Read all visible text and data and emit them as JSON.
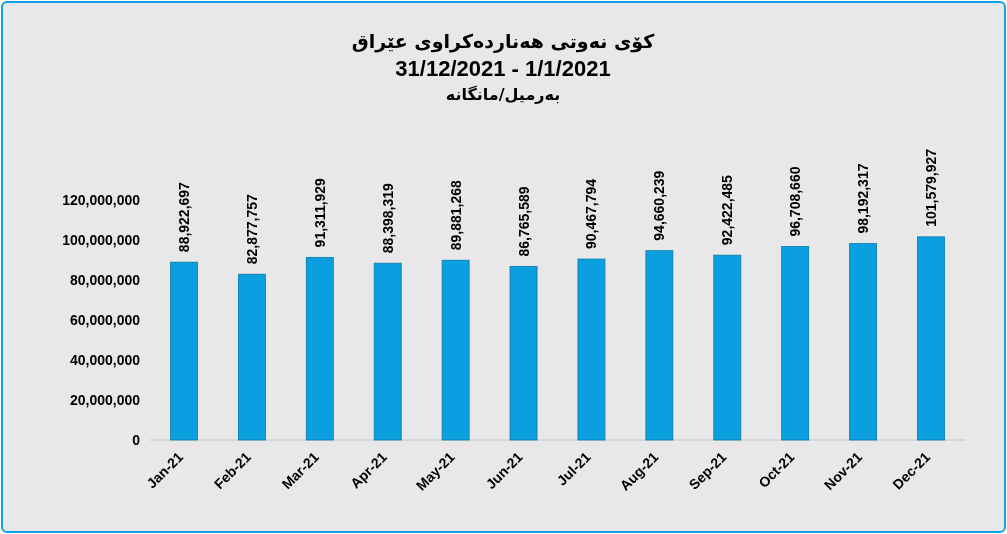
{
  "chart_data": {
    "type": "bar",
    "title": "کۆی نەوتی هەناردەکراوی عێراق",
    "subtitle": "31/12/2021 - 1/1/2021",
    "annotations": [
      "بەرمیل/مانگانە"
    ],
    "categories": [
      "Jan-21",
      "Feb-21",
      "Mar-21",
      "Apr-21",
      "May-21",
      "Jun-21",
      "Jul-21",
      "Aug-21",
      "Sep-21",
      "Oct-21",
      "Nov-21",
      "Dec-21"
    ],
    "values": [
      88922697,
      82877757,
      91311929,
      88398319,
      89881268,
      86765589,
      90467794,
      94660239,
      92422485,
      96708660,
      98192317,
      101579927
    ],
    "value_labels": [
      "88,922,697",
      "82,877,757",
      "91,311,929",
      "88,398,319",
      "89,881,268",
      "86,765,589",
      "90,467,794",
      "94,660,239",
      "92,422,485",
      "96,708,660",
      "98,192,317",
      "101,579,927"
    ],
    "color": "#0aa0e0",
    "ylim": [
      0,
      120000000
    ],
    "yticks": [
      {
        "value": 0,
        "label": "0"
      },
      {
        "value": 20000000,
        "label": "20,000,000"
      },
      {
        "value": 40000000,
        "label": "40,000,000"
      },
      {
        "value": 60000000,
        "label": "60,000,000"
      },
      {
        "value": 80000000,
        "label": "80,000,000"
      },
      {
        "value": 100000000,
        "label": "100,000,000"
      },
      {
        "value": 120000000,
        "label": "120,000,000"
      }
    ]
  }
}
